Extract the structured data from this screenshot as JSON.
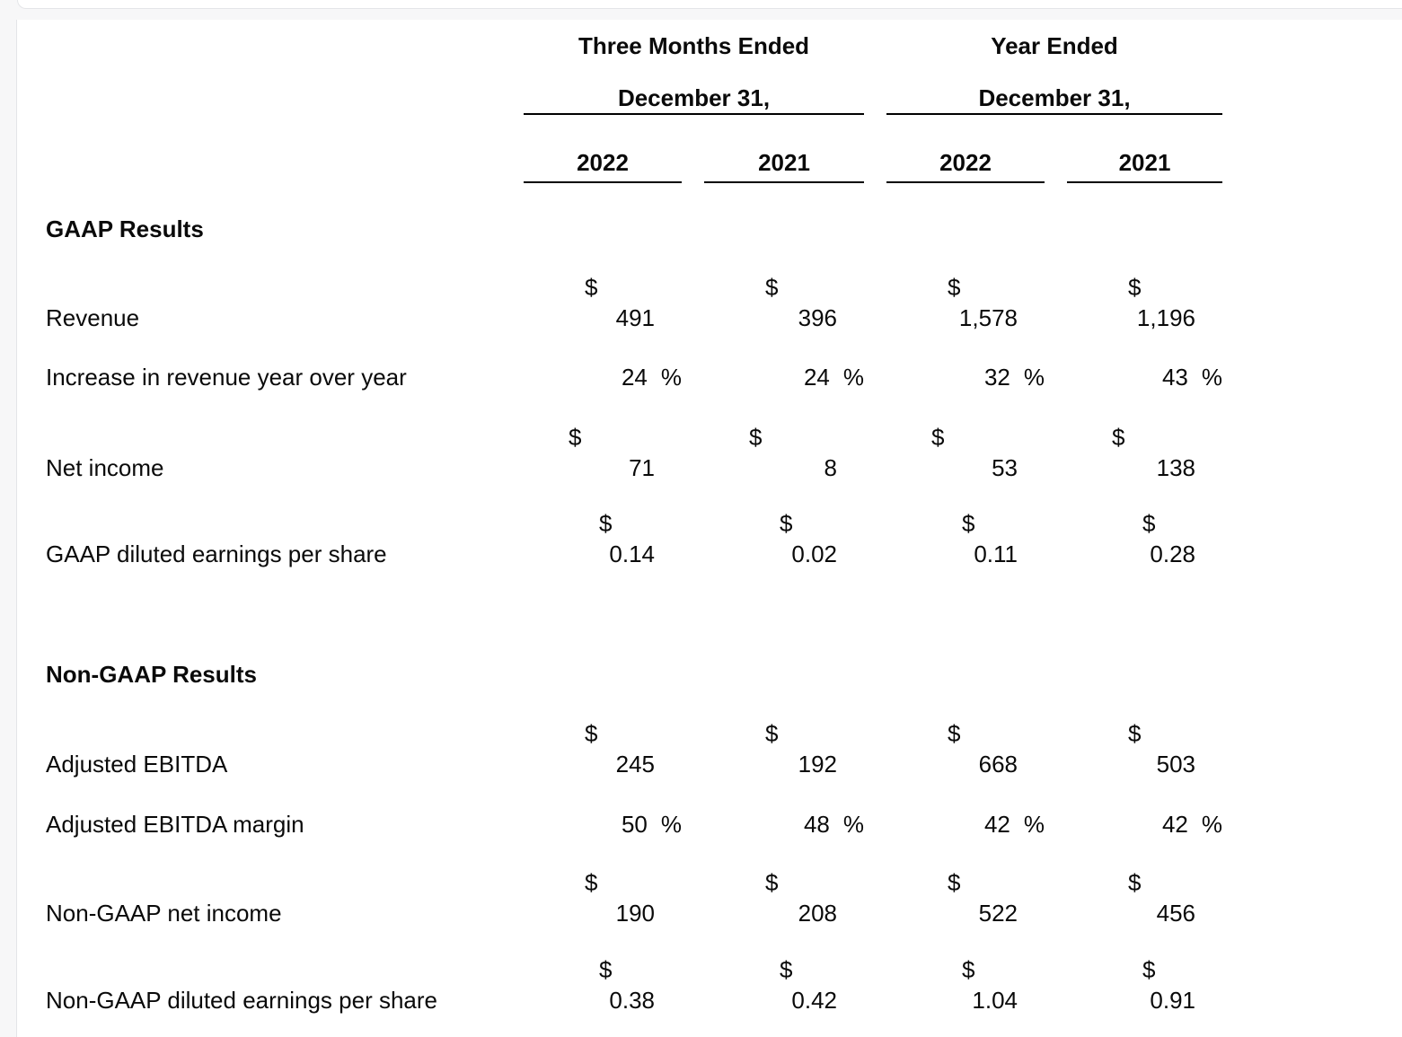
{
  "colors": {
    "page_background": "#f7f7f8",
    "panel_background": "#ffffff",
    "border": "#e4e5e8",
    "text": "#0a0a0a",
    "rule": "#000000"
  },
  "table": {
    "currency_symbol": "$",
    "percent_symbol": "%",
    "col_groups": [
      {
        "title": "Three Months Ended",
        "subtitle": "December 31,"
      },
      {
        "title": "Year Ended",
        "subtitle": "December 31,"
      }
    ],
    "year_columns": [
      "2022",
      "2021",
      "2022",
      "2021"
    ],
    "sections": [
      {
        "heading": "GAAP Results",
        "rows": [
          {
            "label": "Revenue",
            "type": "money",
            "values": [
              "491",
              "396",
              "1,578",
              "1,196"
            ]
          },
          {
            "label": "Increase in revenue year over year",
            "type": "percent",
            "values": [
              "24",
              "24",
              "32",
              "43"
            ]
          },
          {
            "label": "Net income",
            "type": "money",
            "values": [
              "71",
              "8",
              "53",
              "138"
            ]
          },
          {
            "label": "GAAP diluted earnings per share",
            "type": "money",
            "values": [
              "0.14",
              "0.02",
              "0.11",
              "0.28"
            ]
          }
        ]
      },
      {
        "heading": "Non-GAAP Results",
        "rows": [
          {
            "label": "Adjusted EBITDA",
            "type": "money",
            "values": [
              "245",
              "192",
              "668",
              "503"
            ]
          },
          {
            "label": "Adjusted EBITDA margin",
            "type": "percent",
            "values": [
              "50",
              "48",
              "42",
              "42"
            ]
          },
          {
            "label": "Non-GAAP net income",
            "type": "money",
            "values": [
              "190",
              "208",
              "522",
              "456"
            ]
          },
          {
            "label": "Non-GAAP diluted earnings per share",
            "type": "money",
            "values": [
              "0.38",
              "0.42",
              "1.04",
              "0.91"
            ]
          }
        ]
      }
    ]
  }
}
